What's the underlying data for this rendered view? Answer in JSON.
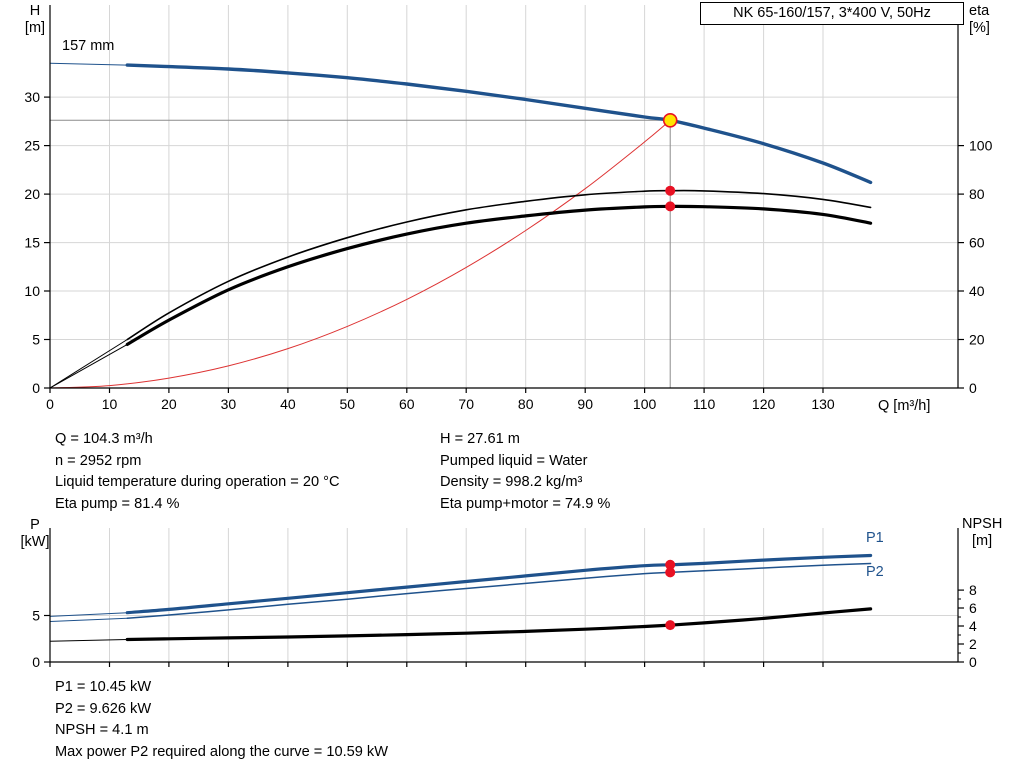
{
  "title_box": "NK 65-160/157, 3*400 V, 50Hz",
  "impeller_label": "157 mm",
  "axis_labels": {
    "head": "H",
    "head_unit": "[m]",
    "eta": "eta",
    "eta_unit": "[%]",
    "flow": "Q [m³/h]",
    "power": "P",
    "power_unit": "[kW]",
    "npsh": "NPSH",
    "npsh_unit": "[m]"
  },
  "curve_labels": {
    "p1": "P1",
    "p2": "P2"
  },
  "info_left": [
    "Q = 104.3 m³/h",
    "n = 2952 rpm",
    "Liquid temperature during operation = 20 °C",
    "Eta pump = 81.4 %"
  ],
  "info_right": [
    "H = 27.61 m",
    "Pumped liquid = Water",
    "Density = 998.2 kg/m³",
    "Eta pump+motor = 74.9 %"
  ],
  "bottom_info": [
    "P1 = 10.45 kW",
    "P2 = 9.626 kW",
    "NPSH = 4.1 m",
    "Max power P2 required along the curve = 10.59 kW"
  ],
  "colors": {
    "curve_blue": "#1f528c",
    "curve_black": "#000000",
    "curve_red": "#dd3333",
    "marker_red": "#e81123",
    "duty_fill": "#ffe400",
    "duty_stroke": "#e81123",
    "grid": "#d6d6d6",
    "duty_line": "#8c8c8c",
    "axis": "#000000"
  },
  "chart_data": [
    {
      "type": "line",
      "id": "qh-eta-chart",
      "title": "NK 65-160/157, 3*400 V, 50Hz",
      "xlabel": "Q [m³/h]",
      "ylabel_left": "H [m]",
      "ylabel_right": "eta [%]",
      "xlim": [
        0,
        152.7
      ],
      "ylim_left": [
        0,
        39.5
      ],
      "ylim_right": [
        0,
        158
      ],
      "x_ticks": [
        0,
        10,
        20,
        30,
        40,
        50,
        60,
        70,
        80,
        90,
        100,
        110,
        120,
        130
      ],
      "y_ticks_left": [
        0,
        5,
        10,
        15,
        20,
        25,
        30
      ],
      "y_ticks_right": [
        0,
        20,
        40,
        60,
        80,
        100
      ],
      "grid": true,
      "series": [
        {
          "name": "system-curve",
          "axis": "left",
          "color": "red",
          "width": 1,
          "points": [
            [
              0,
              0
            ],
            [
              10,
              0.25
            ],
            [
              20,
              1.02
            ],
            [
              30,
              2.28
            ],
            [
              40,
              4.06
            ],
            [
              50,
              6.35
            ],
            [
              60,
              9.14
            ],
            [
              70,
              12.44
            ],
            [
              80,
              16.24
            ],
            [
              90,
              20.55
            ],
            [
              100,
              25.38
            ],
            [
              104.3,
              27.61
            ]
          ]
        },
        {
          "name": "eta-pump-curve",
          "axis": "right",
          "color": "black",
          "width": 1.6,
          "thin_until": 13,
          "points": [
            [
              0,
              0
            ],
            [
              13,
              20
            ],
            [
              20,
              31
            ],
            [
              30,
              44
            ],
            [
              40,
              54
            ],
            [
              50,
              62
            ],
            [
              60,
              68.5
            ],
            [
              70,
              73.5
            ],
            [
              80,
              77
            ],
            [
              90,
              79.7
            ],
            [
              100,
              81.2
            ],
            [
              104.3,
              81.4
            ],
            [
              110,
              81.3
            ],
            [
              120,
              80.2
            ],
            [
              130,
              77.8
            ],
            [
              138,
              74.5
            ]
          ]
        },
        {
          "name": "eta-pump-motor-curve",
          "axis": "right",
          "color": "black",
          "width": 3.2,
          "thin_until": 13,
          "points": [
            [
              0,
              0
            ],
            [
              13,
              18
            ],
            [
              20,
              28
            ],
            [
              30,
              40.5
            ],
            [
              40,
              50
            ],
            [
              50,
              57.5
            ],
            [
              60,
              63.5
            ],
            [
              70,
              68
            ],
            [
              80,
              71
            ],
            [
              90,
              73.4
            ],
            [
              100,
              74.7
            ],
            [
              104.3,
              74.9
            ],
            [
              110,
              74.8
            ],
            [
              120,
              73.9
            ],
            [
              130,
              71.6
            ],
            [
              138,
              68
            ]
          ]
        },
        {
          "name": "head-curve-157mm",
          "axis": "left",
          "color": "blue",
          "width": 3.4,
          "thin_until": 13,
          "points": [
            [
              0,
              33.5
            ],
            [
              13,
              33.3
            ],
            [
              20,
              33.15
            ],
            [
              30,
              32.9
            ],
            [
              40,
              32.5
            ],
            [
              50,
              32.0
            ],
            [
              60,
              31.35
            ],
            [
              70,
              30.6
            ],
            [
              80,
              29.75
            ],
            [
              90,
              28.85
            ],
            [
              100,
              27.95
            ],
            [
              104.3,
              27.61
            ],
            [
              110,
              26.8
            ],
            [
              120,
              25.2
            ],
            [
              130,
              23.2
            ],
            [
              138,
              21.2
            ]
          ]
        }
      ],
      "duty_point": {
        "q": 104.3,
        "h": 27.61
      },
      "markers": [
        {
          "q": 104.3,
          "value": 81.4,
          "axis": "right"
        },
        {
          "q": 104.3,
          "value": 74.9,
          "axis": "right"
        }
      ]
    },
    {
      "type": "line",
      "id": "power-npsh-chart",
      "xlabel": "",
      "ylabel_left": "P [kW]",
      "ylabel_right": "NPSH [m]",
      "xlim": [
        0,
        152.7
      ],
      "ylim_left": [
        0,
        14.4
      ],
      "ylim_right": [
        0,
        14.9
      ],
      "x_ticks": [
        0,
        10,
        20,
        30,
        40,
        50,
        60,
        70,
        80,
        90,
        100,
        110,
        120,
        130
      ],
      "y_ticks_left": [
        0,
        5
      ],
      "y_ticks_right": [
        0,
        2,
        4,
        6,
        8
      ],
      "y_minor_right": [
        1,
        3,
        5,
        7
      ],
      "grid": true,
      "series": [
        {
          "name": "p1-curve",
          "axis": "left",
          "color": "blue",
          "width": 3.2,
          "thin_until": 13,
          "label": "P1",
          "points": [
            [
              0,
              4.9
            ],
            [
              13,
              5.3
            ],
            [
              20,
              5.65
            ],
            [
              30,
              6.25
            ],
            [
              40,
              6.85
            ],
            [
              50,
              7.45
            ],
            [
              60,
              8.05
            ],
            [
              70,
              8.65
            ],
            [
              80,
              9.25
            ],
            [
              90,
              9.85
            ],
            [
              100,
              10.35
            ],
            [
              104.3,
              10.45
            ],
            [
              110,
              10.6
            ],
            [
              120,
              10.95
            ],
            [
              130,
              11.25
            ],
            [
              138,
              11.45
            ]
          ]
        },
        {
          "name": "p2-curve",
          "axis": "left",
          "color": "blue",
          "width": 1.5,
          "thin_until": 13,
          "label": "P2",
          "points": [
            [
              0,
              4.35
            ],
            [
              13,
              4.7
            ],
            [
              20,
              5.05
            ],
            [
              30,
              5.6
            ],
            [
              40,
              6.2
            ],
            [
              50,
              6.75
            ],
            [
              60,
              7.35
            ],
            [
              70,
              7.9
            ],
            [
              80,
              8.45
            ],
            [
              90,
              9.0
            ],
            [
              100,
              9.5
            ],
            [
              104.3,
              9.626
            ],
            [
              110,
              9.8
            ],
            [
              120,
              10.1
            ],
            [
              130,
              10.4
            ],
            [
              138,
              10.59
            ]
          ]
        },
        {
          "name": "npsh-curve",
          "axis": "right",
          "color": "black",
          "width": 3.2,
          "thin_until": 13,
          "points": [
            [
              0,
              2.3
            ],
            [
              13,
              2.5
            ],
            [
              20,
              2.58
            ],
            [
              30,
              2.68
            ],
            [
              40,
              2.78
            ],
            [
              50,
              2.9
            ],
            [
              60,
              3.05
            ],
            [
              70,
              3.2
            ],
            [
              80,
              3.4
            ],
            [
              90,
              3.65
            ],
            [
              100,
              3.95
            ],
            [
              104.3,
              4.1
            ],
            [
              110,
              4.35
            ],
            [
              120,
              4.85
            ],
            [
              130,
              5.45
            ],
            [
              138,
              5.9
            ]
          ]
        }
      ],
      "markers": [
        {
          "q": 104.3,
          "value": 10.45,
          "axis": "left"
        },
        {
          "q": 104.3,
          "value": 9.626,
          "axis": "left"
        },
        {
          "q": 104.3,
          "value": 4.1,
          "axis": "right"
        }
      ]
    }
  ]
}
